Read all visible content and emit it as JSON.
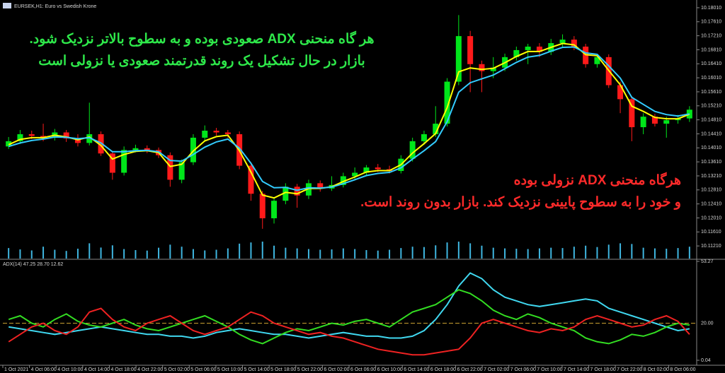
{
  "chart_data": [
    {
      "type": "candlestick",
      "title": "EURSEK,H1: Euro vs Swedish Krone",
      "up_color": "#00e61a",
      "down_color": "#ff1a1a",
      "volume_color": "#3fb6e0",
      "ylim": [
        10.1085,
        10.1815
      ],
      "yticks": [
        {
          "value": 10.1121,
          "label": "10.11210"
        },
        {
          "value": 10.1161,
          "label": "10.11610"
        },
        {
          "value": 10.1201,
          "label": "10.12010"
        },
        {
          "value": 10.1241,
          "label": "10.12410"
        },
        {
          "value": 10.1281,
          "label": "10.12810"
        },
        {
          "value": 10.1321,
          "label": "10.13210"
        },
        {
          "value": 10.1361,
          "label": "10.13610"
        },
        {
          "value": 10.1401,
          "label": "10.14010"
        },
        {
          "value": 10.1441,
          "label": "10.14410"
        },
        {
          "value": 10.1481,
          "label": "10.14810"
        },
        {
          "value": 10.1521,
          "label": "10.15210"
        },
        {
          "value": 10.1561,
          "label": "10.15610"
        },
        {
          "value": 10.1601,
          "label": "10.16010"
        },
        {
          "value": 10.1641,
          "label": "10.16410"
        },
        {
          "value": 10.1681,
          "label": "10.16810"
        },
        {
          "value": 10.1721,
          "label": "10.17210"
        },
        {
          "value": 10.1761,
          "label": "10.17610"
        },
        {
          "value": 10.1801,
          "label": "10.18010"
        }
      ],
      "open": [
        10.1405,
        10.142,
        10.144,
        10.1435,
        10.143,
        10.1445,
        10.1428,
        10.1415,
        10.144,
        10.1385,
        10.133,
        10.1395,
        10.14,
        10.1395,
        10.138,
        10.131,
        10.136,
        10.143,
        10.145,
        10.1445,
        10.144,
        10.135,
        10.127,
        10.12,
        10.125,
        10.129,
        10.1265,
        10.13,
        10.1285,
        10.1295,
        10.132,
        10.133,
        10.1345,
        10.134,
        10.1335,
        10.137,
        10.142,
        10.144,
        10.147,
        10.159,
        10.172,
        10.164,
        10.162,
        10.163,
        10.166,
        10.168,
        10.169,
        10.1675,
        10.17,
        10.171,
        10.169,
        10.164,
        10.166,
        10.158,
        10.154,
        10.146,
        10.149,
        10.147,
        10.148,
        10.1485
      ],
      "high": [
        10.1432,
        10.1452,
        10.145,
        10.147,
        10.1455,
        10.1452,
        10.144,
        10.153,
        10.1448,
        10.1392,
        10.1405,
        10.141,
        10.1408,
        10.1402,
        10.1388,
        10.1368,
        10.144,
        10.1465,
        10.1458,
        10.1452,
        10.1448,
        10.136,
        10.1278,
        10.126,
        10.13,
        10.1298,
        10.131,
        10.1308,
        10.132,
        10.133,
        10.1345,
        10.1352,
        10.1355,
        10.135,
        10.138,
        10.143,
        10.145,
        10.152,
        10.16,
        10.178,
        10.1735,
        10.165,
        10.166,
        10.167,
        10.169,
        10.1698,
        10.17,
        10.1712,
        10.1725,
        10.172,
        10.1698,
        10.1668,
        10.1668,
        10.159,
        10.1548,
        10.15,
        10.1498,
        10.149,
        10.1495,
        10.152
      ],
      "low": [
        10.1398,
        10.1412,
        10.1426,
        10.142,
        10.1422,
        10.1418,
        10.1405,
        10.1408,
        10.1378,
        10.131,
        10.1322,
        10.1388,
        10.1386,
        10.1372,
        10.129,
        10.13,
        10.1352,
        10.1422,
        10.1436,
        10.143,
        10.134,
        10.125,
        10.117,
        10.1185,
        10.124,
        10.123,
        10.1255,
        10.1276,
        10.1278,
        10.1288,
        10.1312,
        10.1322,
        10.1332,
        10.1328,
        10.1328,
        10.1362,
        10.141,
        10.1432,
        10.1462,
        10.158,
        10.156,
        10.156,
        10.16,
        10.162,
        10.165,
        10.164,
        10.166,
        10.1666,
        10.169,
        10.168,
        10.163,
        10.163,
        10.1572,
        10.15,
        10.142,
        10.144,
        10.1462,
        10.143,
        10.147,
        10.1475
      ],
      "close": [
        10.142,
        10.144,
        10.1435,
        10.143,
        10.1445,
        10.1428,
        10.1415,
        10.144,
        10.1385,
        10.133,
        10.1395,
        10.14,
        10.1395,
        10.138,
        10.131,
        10.136,
        10.143,
        10.145,
        10.1445,
        10.144,
        10.135,
        10.127,
        10.12,
        10.125,
        10.129,
        10.1265,
        10.13,
        10.1285,
        10.1295,
        10.132,
        10.133,
        10.1345,
        10.134,
        10.1335,
        10.137,
        10.142,
        10.144,
        10.147,
        10.159,
        10.172,
        10.164,
        10.162,
        10.163,
        10.166,
        10.168,
        10.169,
        10.1675,
        10.17,
        10.171,
        10.169,
        10.164,
        10.166,
        10.158,
        10.154,
        10.146,
        10.149,
        10.147,
        10.148,
        10.1485,
        10.151
      ],
      "volume": [
        620,
        540,
        480,
        700,
        520,
        450,
        580,
        900,
        650,
        780,
        560,
        500,
        470,
        640,
        820,
        700,
        560,
        480,
        520,
        600,
        880,
        950,
        1000,
        760,
        640,
        600,
        560,
        520,
        540,
        600,
        560,
        500,
        470,
        520,
        620,
        700,
        680,
        780,
        950,
        1000,
        900,
        760,
        640,
        600,
        580,
        560,
        600,
        640,
        620,
        700,
        760,
        680,
        820,
        900,
        860,
        640,
        600,
        580,
        620,
        700
      ],
      "series": [
        {
          "color": "#ffff00",
          "values": [
            10.141,
            10.1425,
            10.143,
            10.143,
            10.1437,
            10.1432,
            10.1424,
            10.1432,
            10.1408,
            10.1369,
            10.1382,
            10.1391,
            10.1393,
            10.1387,
            10.1348,
            10.1354,
            10.1392,
            10.1421,
            10.1433,
            10.1437,
            10.1393,
            10.1332,
            10.1266,
            10.1258,
            10.1274,
            10.127,
            10.1285,
            10.1285,
            10.129,
            10.1305,
            10.1318,
            10.1332,
            10.1336,
            10.1336,
            10.1353,
            10.1386,
            10.1413,
            10.1442,
            10.1516,
            10.1618,
            10.1629,
            10.1625,
            10.1628,
            10.1644,
            10.1662,
            10.1676,
            10.1676,
            10.1688,
            10.1699,
            10.1695,
            10.1667,
            10.1664,
            10.1622,
            10.1581,
            10.152,
            10.1505,
            10.1488,
            10.1484,
            10.1484,
            10.1497
          ]
        },
        {
          "color": "#33ccff",
          "values": [
            10.1405,
            10.1415,
            10.1422,
            10.1426,
            10.1432,
            10.1431,
            10.1427,
            10.143,
            10.1415,
            10.139,
            10.139,
            10.1393,
            10.1394,
            10.139,
            10.1365,
            10.1363,
            10.1382,
            10.1403,
            10.1418,
            10.1426,
            10.14,
            10.1357,
            10.1305,
            10.1287,
            10.1288,
            10.128,
            10.1287,
            10.1286,
            10.1289,
            10.1299,
            10.131,
            10.1322,
            10.1328,
            10.1331,
            10.1344,
            10.1369,
            10.1393,
            10.1419,
            10.1476,
            10.156,
            10.1587,
            10.1598,
            10.1609,
            10.1627,
            10.1645,
            10.166,
            10.1665,
            10.1677,
            10.1688,
            10.1689,
            10.1672,
            10.1668,
            10.1635,
            10.16,
            10.1545,
            10.1525,
            10.1505,
            10.1496,
            10.1492,
            10.1498
          ]
        }
      ],
      "annotations": [
        {
          "color": "#2ee84a",
          "lines": [
            "هر گاه منحنی ADX صعودی بوده و به سطوح بالاتر نزدیک شود.",
            "بازار در حال تشکیل یک روند قدرتمند صعودی یا نزولی است"
          ]
        },
        {
          "color": "#ff2a2a",
          "lines": [
            "هرگاه منحنی ADX نزولی بوده",
            "و خود را به سطوح پایینی نزدیک کند. بازار بدون روند است."
          ]
        }
      ]
    },
    {
      "type": "line",
      "title": "ADX(14) 47.25 28.70 12.62",
      "ylim": [
        0.04,
        53.27
      ],
      "yticks": [
        53.27,
        0.04
      ],
      "levels": [
        {
          "value": 20,
          "label": "20.00",
          "color": "#c8a030"
        }
      ],
      "series": [
        {
          "color": "#40d8f0",
          "values": [
            18,
            17,
            16,
            15,
            14,
            15,
            16,
            17,
            18,
            17,
            16,
            15,
            14,
            14,
            13,
            13,
            12,
            13,
            15,
            16,
            17,
            16,
            15,
            14,
            14,
            13,
            12,
            13,
            14,
            15,
            14,
            13,
            13,
            12,
            12,
            13,
            16,
            22,
            30,
            40,
            47,
            44,
            38,
            34,
            32,
            30,
            29,
            30,
            31,
            32,
            33,
            32,
            28,
            26,
            24,
            22,
            20,
            18,
            16,
            17
          ]
        },
        {
          "color": "#33dd22",
          "values": [
            22,
            24,
            20,
            18,
            22,
            25,
            21,
            19,
            18,
            20,
            22,
            19,
            17,
            16,
            18,
            20,
            22,
            24,
            21,
            18,
            14,
            11,
            9,
            12,
            15,
            17,
            16,
            18,
            20,
            19,
            21,
            22,
            20,
            18,
            22,
            26,
            28,
            30,
            34,
            38,
            36,
            32,
            27,
            24,
            22,
            25,
            23,
            20,
            18,
            16,
            12,
            10,
            9,
            11,
            14,
            13,
            15,
            18,
            20,
            19
          ]
        },
        {
          "color": "#ee2222",
          "values": [
            10,
            14,
            18,
            20,
            16,
            14,
            18,
            26,
            28,
            22,
            18,
            16,
            20,
            22,
            24,
            20,
            16,
            14,
            16,
            18,
            22,
            26,
            24,
            20,
            18,
            16,
            14,
            15,
            13,
            12,
            10,
            8,
            6,
            5,
            4,
            3,
            3,
            4,
            5,
            6,
            12,
            20,
            22,
            20,
            18,
            16,
            15,
            17,
            16,
            18,
            22,
            24,
            22,
            20,
            18,
            19,
            22,
            24,
            21,
            14
          ]
        }
      ],
      "x_labels": [
        "1 Oct 2021",
        "4 Oct 06:00",
        "4 Oct 10:00",
        "4 Oct 14:00",
        "4 Oct 18:00",
        "4 Oct 22:00",
        "5 Oct 02:00",
        "5 Oct 06:00",
        "5 Oct 10:00",
        "5 Oct 14:00",
        "5 Oct 18:00",
        "5 Oct 22:00",
        "6 Oct 02:00",
        "6 Oct 06:00",
        "6 Oct 10:00",
        "6 Oct 14:00",
        "6 Oct 18:00",
        "6 Oct 22:00",
        "7 Oct 02:00",
        "7 Oct 06:00",
        "7 Oct 10:00",
        "7 Oct 14:00",
        "7 Oct 18:00",
        "7 Oct 22:00",
        "8 Oct 02:00",
        "8 Oct 06:00"
      ]
    }
  ]
}
